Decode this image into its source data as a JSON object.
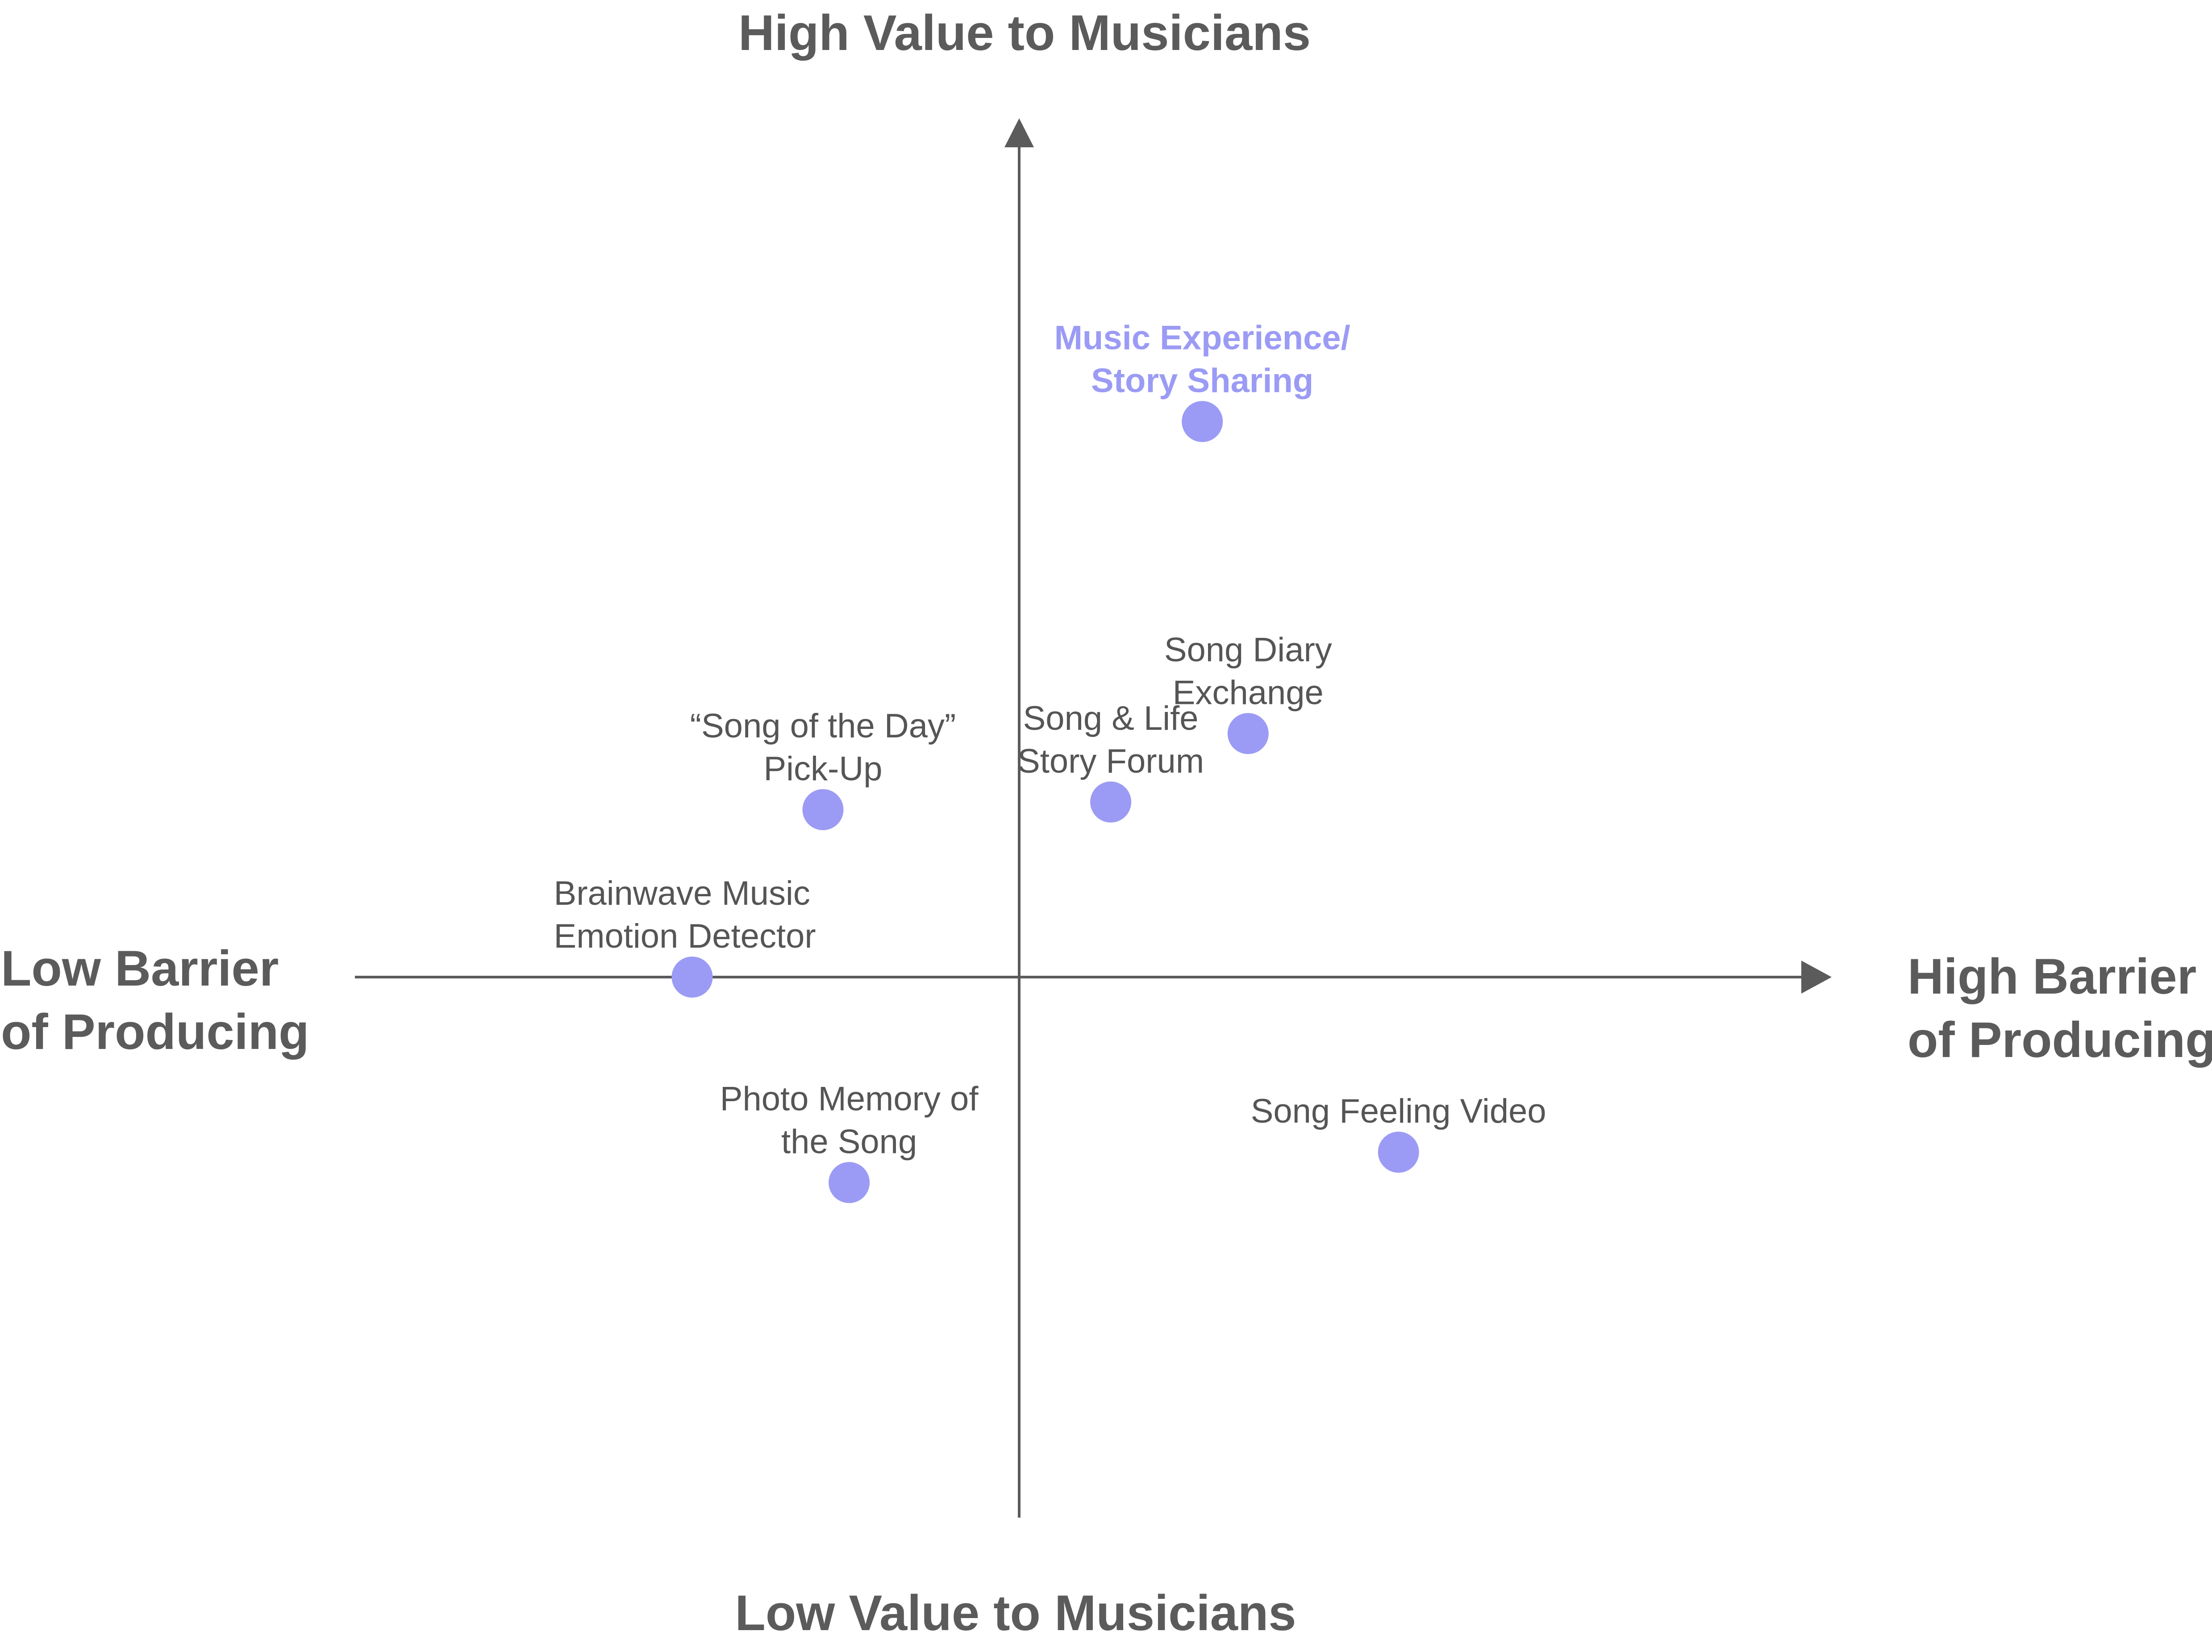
{
  "colors": {
    "axis": "#5b5b5b",
    "point": "#9b9bf5",
    "highlight_label": "#9b9bf5",
    "label": "#555555",
    "background": "#ffffff"
  },
  "chart_data": {
    "type": "scatter",
    "title": "",
    "quadrant_layout": true,
    "x_axis": {
      "low_label": "Low Barrier of Producing",
      "high_label": "High Barrier of Producing",
      "low_label_lines": [
        "Low Barrier",
        "of Producing"
      ],
      "high_label_lines": [
        "High Barrier",
        "of Producing"
      ],
      "range": [
        -1,
        1
      ]
    },
    "y_axis": {
      "high_label": "High Value to Musicians",
      "low_label": "Low Value to Musicians",
      "range": [
        -1,
        1
      ]
    },
    "grid": false,
    "points": [
      {
        "label_lines": [
          "Music Experience/",
          "Story Sharing"
        ],
        "x": 0.28,
        "y": 0.73,
        "highlight": true,
        "label_anchor": "middle"
      },
      {
        "label_lines": [
          "Song Diary",
          "Exchange"
        ],
        "x": 0.35,
        "y": 0.32,
        "highlight": false,
        "label_anchor": "middle"
      },
      {
        "label_lines": [
          "Song & Life",
          "Story Forum"
        ],
        "x": 0.14,
        "y": 0.23,
        "highlight": false,
        "label_anchor": "middle"
      },
      {
        "label_lines": [
          "“Song of the Day”",
          "Pick-Up"
        ],
        "x": -0.3,
        "y": 0.22,
        "highlight": false,
        "label_anchor": "middle"
      },
      {
        "label_lines": [
          "Brainwave Music",
          "Emotion Detector"
        ],
        "x": -0.5,
        "y": 0.0,
        "highlight": false,
        "label_anchor": "start"
      },
      {
        "label_lines": [
          "Photo Memory of",
          "the Song"
        ],
        "x": -0.26,
        "y": -0.27,
        "highlight": false,
        "label_anchor": "middle"
      },
      {
        "label_lines": [
          "Song Feeling Video"
        ],
        "x": 0.58,
        "y": -0.23,
        "highlight": false,
        "label_anchor": "middle"
      }
    ]
  }
}
